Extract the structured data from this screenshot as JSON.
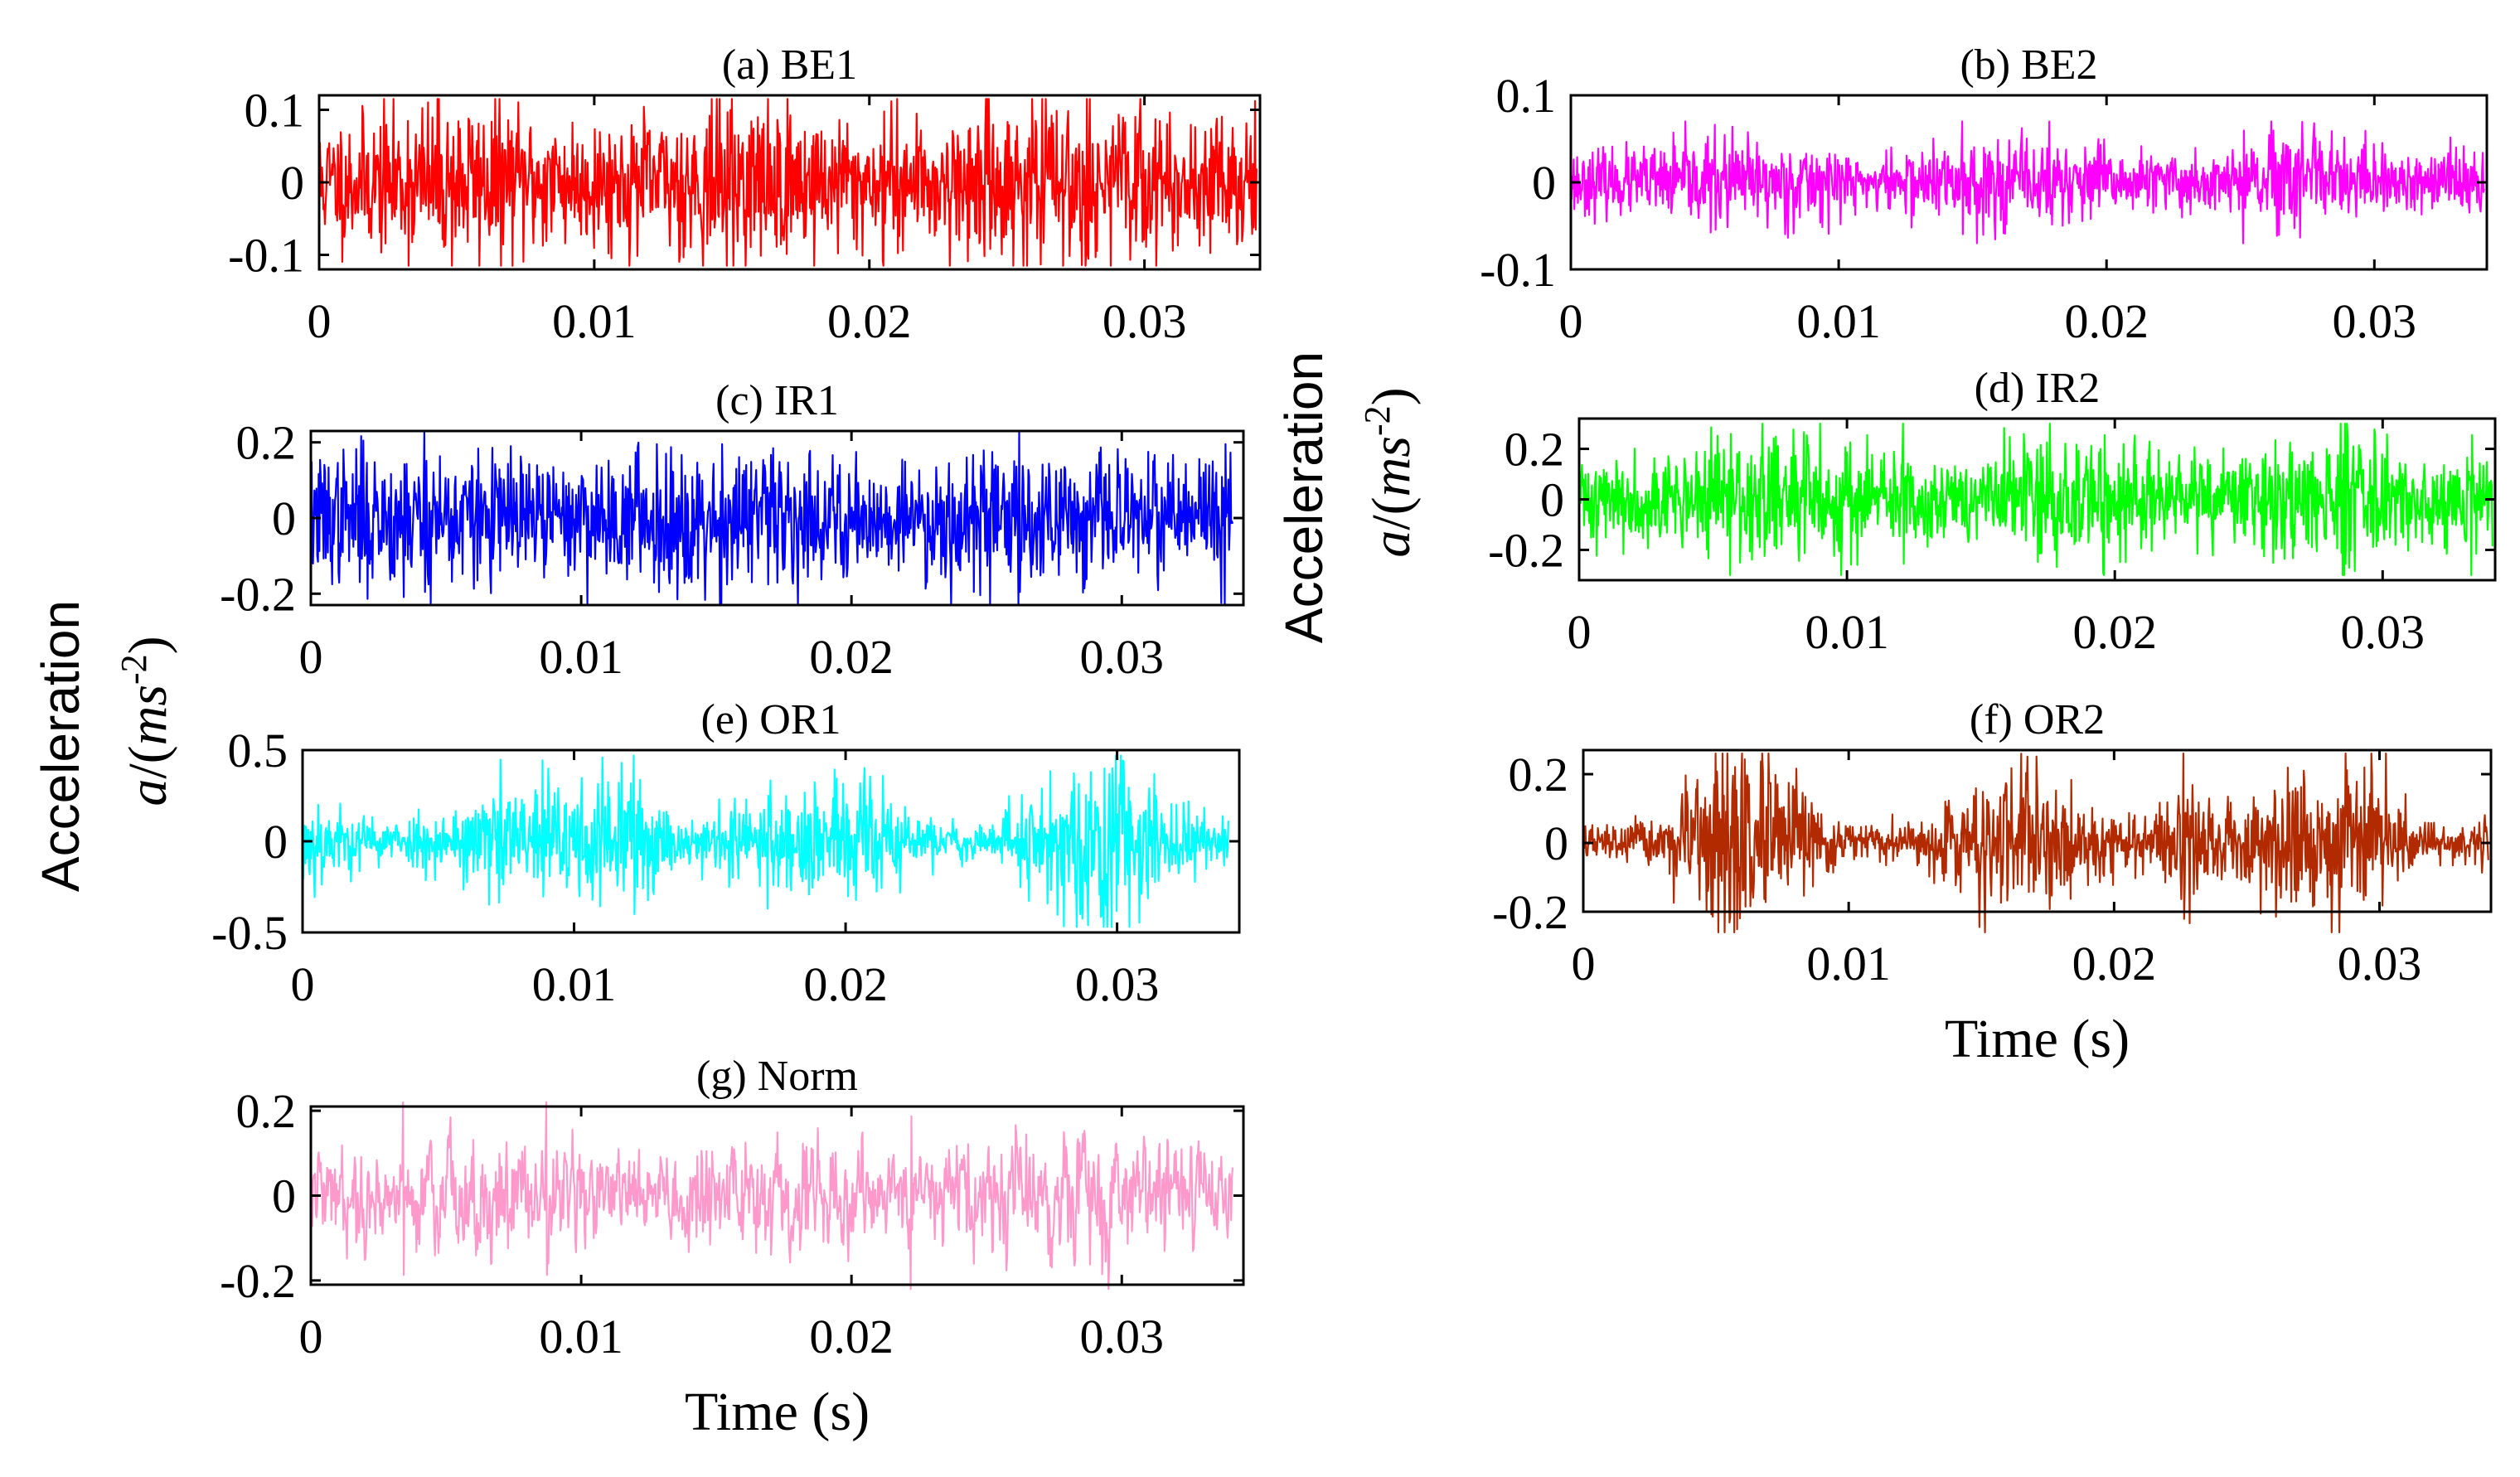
{
  "chart_data": [
    {
      "id": "a",
      "type": "line",
      "title": "(a)   BE1",
      "xlabel": "",
      "ylabel": "",
      "xlim": [
        0,
        0.0342
      ],
      "ylim": [
        -0.12,
        0.12
      ],
      "xticks": [
        0,
        0.01,
        0.02,
        0.03
      ],
      "xtick_labels": [
        "0",
        "0.01",
        "0.02",
        "0.03"
      ],
      "yticks": [
        0.1,
        0,
        -0.1
      ],
      "ytick_labels": [
        "0.1",
        "0",
        "-0.1"
      ],
      "signal_end": 0.0341,
      "series": [
        {
          "name": "BE1",
          "color": "#ff0000",
          "amplitude": 0.05,
          "peak": 0.115,
          "seed": 11,
          "modulation": 0.15,
          "peak_times": [
            0.021,
            0.0205,
            0.0279
          ]
        }
      ]
    },
    {
      "id": "b",
      "type": "line",
      "title": "(b)   BE2",
      "xlabel": "",
      "ylabel": "",
      "xlim": [
        0,
        0.0342
      ],
      "ylim": [
        -0.1,
        0.1
      ],
      "xticks": [
        0,
        0.01,
        0.02,
        0.03
      ],
      "xtick_labels": [
        "0",
        "0.01",
        "0.02",
        "0.03"
      ],
      "yticks": [
        0.1,
        0,
        -0.1
      ],
      "ytick_labels": [
        "0.1",
        "0",
        "-0.1"
      ],
      "signal_end": 0.0341,
      "series": [
        {
          "name": "BE2",
          "color": "#ff00ff",
          "amplitude": 0.022,
          "peak": 0.07,
          "seed": 23,
          "modulation": 0.2,
          "peak_times": [
            0.0146,
            0.0251
          ]
        }
      ]
    },
    {
      "id": "c",
      "type": "line",
      "title": "(c)   IR1",
      "xlabel": "",
      "ylabel": "",
      "xlim": [
        0,
        0.0345
      ],
      "ylim": [
        -0.23,
        0.23
      ],
      "xticks": [
        0,
        0.01,
        0.02,
        0.03
      ],
      "xtick_labels": [
        "0",
        "0.01",
        "0.02",
        "0.03"
      ],
      "yticks": [
        0.2,
        0,
        -0.2
      ],
      "ytick_labels": [
        "0.2",
        "0",
        "-0.2"
      ],
      "signal_end": 0.0341,
      "series": [
        {
          "name": "IR1",
          "color": "#0000ff",
          "amplitude": 0.085,
          "peak": 0.23,
          "seed": 37,
          "modulation": 0.12,
          "peak_times": [
            0.0042,
            0.0152,
            0.0262,
            0.0338
          ]
        }
      ]
    },
    {
      "id": "d",
      "type": "line",
      "title": "(d)   IR2",
      "xlabel": "",
      "ylabel": "",
      "xlim": [
        0,
        0.0342
      ],
      "ylim": [
        -0.32,
        0.32
      ],
      "xticks": [
        0,
        0.01,
        0.02,
        0.03
      ],
      "xtick_labels": [
        "0",
        "0.01",
        "0.02",
        "0.03"
      ],
      "yticks": [
        0.2,
        0,
        -0.2
      ],
      "ytick_labels": [
        "0.2",
        "0",
        "-0.2"
      ],
      "signal_end": 0.0341,
      "series": [
        {
          "name": "IR2",
          "color": "#00ff00",
          "amplitude": 0.11,
          "peak": 0.3,
          "seed": 41,
          "modulation": 0.25,
          "peak_times": [
            0.0121,
            0.0196,
            0.0286,
            0.0333
          ]
        }
      ]
    },
    {
      "id": "e",
      "type": "line",
      "title": "(e)   OR1",
      "xlabel": "",
      "ylabel": "",
      "xlim": [
        0,
        0.0345
      ],
      "ylim": [
        -0.5,
        0.5
      ],
      "xticks": [
        0,
        0.01,
        0.02,
        0.03
      ],
      "xtick_labels": [
        "0",
        "0.01",
        "0.02",
        "0.03"
      ],
      "yticks": [
        0.5,
        0,
        -0.5
      ],
      "ytick_labels": [
        "0.5",
        "0",
        "-0.5"
      ],
      "signal_end": 0.0341,
      "series": [
        {
          "name": "OR1",
          "color": "#00ffff",
          "amplitude": 0.12,
          "peak": 0.47,
          "seed": 53,
          "modulation": 0.5,
          "burst_times": [
            0.012,
            0.0295
          ],
          "peak_times": [
            0.0122,
            0.0295
          ]
        }
      ]
    },
    {
      "id": "f",
      "type": "line",
      "title": "(f)   OR2",
      "xlabel": "Time (s)",
      "ylabel": "",
      "xlim": [
        0,
        0.0342
      ],
      "ylim": [
        -0.2,
        0.27
      ],
      "xticks": [
        0,
        0.01,
        0.02,
        0.03
      ],
      "xtick_labels": [
        "0",
        "0.01",
        "0.02",
        "0.03"
      ],
      "yticks": [
        0.2,
        0,
        -0.2
      ],
      "ytick_labels": [
        "0.2",
        "0",
        "-0.2"
      ],
      "signal_end": 0.0341,
      "series": [
        {
          "name": "OR2",
          "color": "#b22a00",
          "amplitude": 0.06,
          "peak": 0.26,
          "seed": 67,
          "modulation": 0.6,
          "burst_times": [
            0.0057,
            0.0226,
            0.0296
          ],
          "peak_times": [
            0.0226,
            0.0057
          ]
        }
      ]
    },
    {
      "id": "g",
      "type": "line",
      "title": "(g)  Norm",
      "xlabel": "Time (s)",
      "ylabel": "",
      "xlim": [
        0,
        0.0345
      ],
      "ylim": [
        -0.21,
        0.21
      ],
      "xticks": [
        0,
        0.01,
        0.02,
        0.03
      ],
      "xtick_labels": [
        "0",
        "0.01",
        "0.02",
        "0.03"
      ],
      "yticks": [
        0.2,
        0,
        -0.2
      ],
      "ytick_labels": [
        "0.2",
        "0",
        "-0.2"
      ],
      "signal_end": 0.0341,
      "series": [
        {
          "name": "Norm",
          "color": "#ff99cc",
          "amplitude": 0.075,
          "peak": 0.22,
          "seed": 79,
          "modulation": 0.2,
          "smooth": true,
          "peak_times": [
            0.0034,
            0.0222,
            0.0087
          ]
        }
      ]
    }
  ],
  "shared_ylabel": {
    "line1": "Acceleration",
    "italic": "a",
    "mid": "/(",
    "unit": "ms",
    "exponent": "-2",
    "close": ")"
  }
}
